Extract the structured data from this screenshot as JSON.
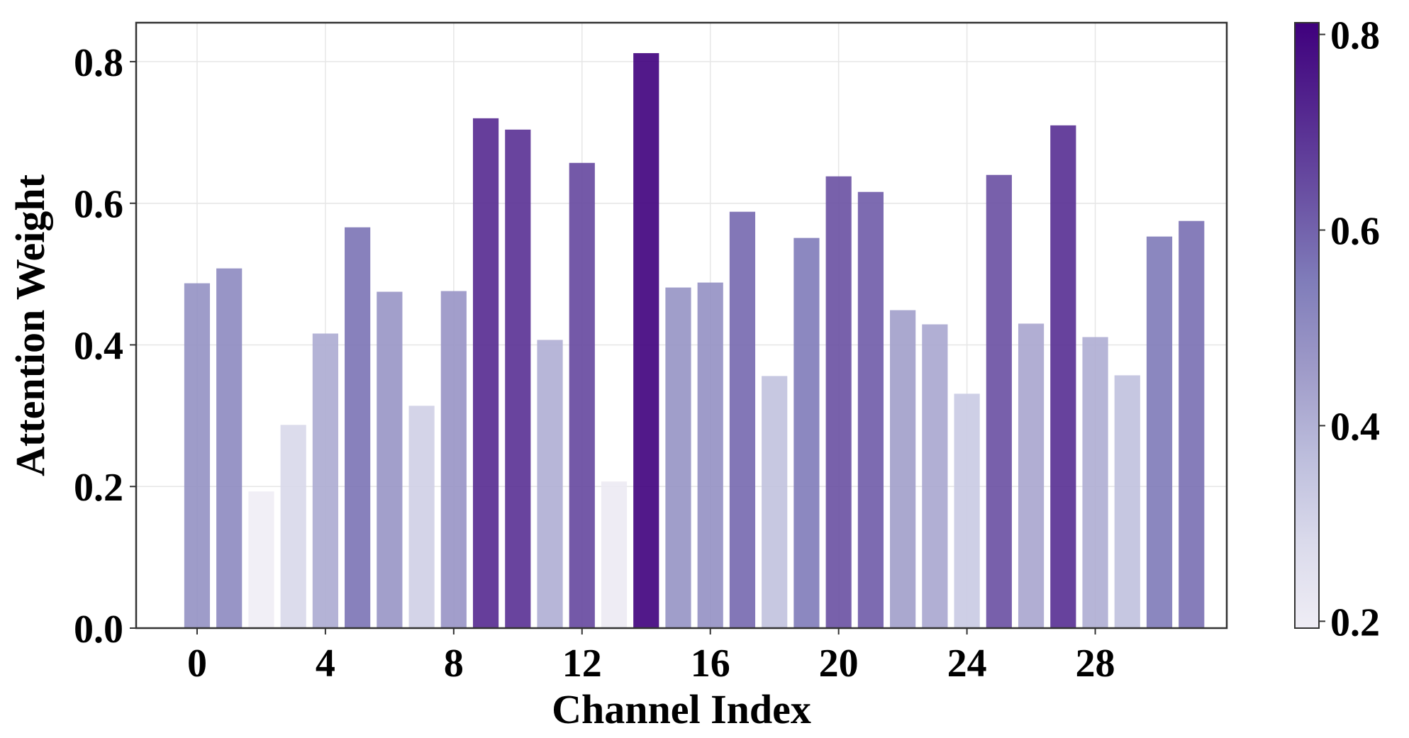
{
  "chart_data": {
    "type": "bar",
    "title": "",
    "xlabel": "Channel Index",
    "ylabel": "Attention Weight",
    "categories": [
      0,
      1,
      2,
      3,
      4,
      5,
      6,
      7,
      8,
      9,
      10,
      11,
      12,
      13,
      14,
      15,
      16,
      17,
      18,
      19,
      20,
      21,
      22,
      23,
      24,
      25,
      26,
      27,
      28,
      29,
      30,
      31
    ],
    "values": [
      0.487,
      0.508,
      0.193,
      0.287,
      0.416,
      0.566,
      0.475,
      0.314,
      0.476,
      0.72,
      0.704,
      0.407,
      0.657,
      0.207,
      0.812,
      0.481,
      0.488,
      0.588,
      0.356,
      0.551,
      0.638,
      0.616,
      0.449,
      0.429,
      0.331,
      0.64,
      0.43,
      0.71,
      0.411,
      0.357,
      0.553,
      0.575
    ],
    "xticks": [
      0,
      4,
      8,
      12,
      16,
      20,
      24,
      28
    ],
    "yticks": [
      0.0,
      0.2,
      0.4,
      0.6,
      0.8
    ],
    "ylim": [
      0,
      0.855
    ],
    "xlim": [
      -1.9,
      32.1
    ],
    "grid": true,
    "colormap": {
      "name": "Purples",
      "range": [
        0.193,
        0.812
      ],
      "colors": [
        "#efedf5",
        "#dadaeb",
        "#bcbddc",
        "#9e9ac8",
        "#807dba",
        "#6a51a3",
        "#54278f",
        "#3f007d"
      ],
      "ticks": [
        0.2,
        0.4,
        0.6,
        0.8
      ]
    }
  }
}
